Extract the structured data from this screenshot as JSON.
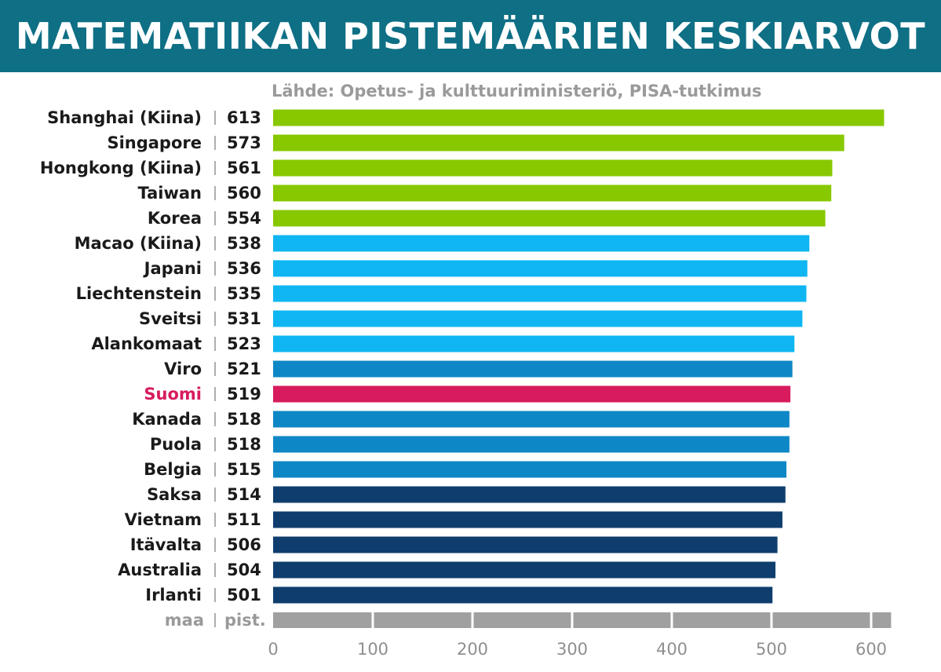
{
  "title": "MATEMATIIKAN PISTEMÄÄRIEN KESKIARVOT",
  "source": "Lähde: Opetus- ja kulttuuriministeriö, PISA-tutkimus",
  "colors": {
    "header_bg": "#0e6f85",
    "green": "#87c800",
    "light_blue": "#0fb6f2",
    "mid_blue": "#0e87c6",
    "dark_blue": "#0f3e6e",
    "highlight": "#d71b5e",
    "axis": "#a0a0a0"
  },
  "chart_data": {
    "type": "bar",
    "orientation": "horizontal",
    "title": "MATEMATIIKAN PISTEMÄÄRIEN KESKIARVOT",
    "xlabel": "pist.",
    "ylabel": "maa",
    "xlim": [
      0,
      620
    ],
    "ticks": [
      0,
      100,
      200,
      300,
      400,
      500,
      600
    ],
    "highlight": "Suomi",
    "categories": [
      "Shanghai (Kiina)",
      "Singapore",
      "Hongkong (Kiina)",
      "Taiwan",
      "Korea",
      "Macao (Kiina)",
      "Japani",
      "Liechtenstein",
      "Sveitsi",
      "Alankomaat",
      "Viro",
      "Suomi",
      "Kanada",
      "Puola",
      "Belgia",
      "Saksa",
      "Vietnam",
      "Itävalta",
      "Australia",
      "Irlanti"
    ],
    "values": [
      613,
      573,
      561,
      560,
      554,
      538,
      536,
      535,
      531,
      523,
      521,
      519,
      518,
      518,
      515,
      514,
      511,
      506,
      504,
      501
    ],
    "color_groups": [
      "green",
      "green",
      "green",
      "green",
      "green",
      "light_blue",
      "light_blue",
      "light_blue",
      "light_blue",
      "light_blue",
      "mid_blue",
      "highlight",
      "mid_blue",
      "mid_blue",
      "mid_blue",
      "dark_blue",
      "dark_blue",
      "dark_blue",
      "dark_blue",
      "dark_blue"
    ]
  }
}
